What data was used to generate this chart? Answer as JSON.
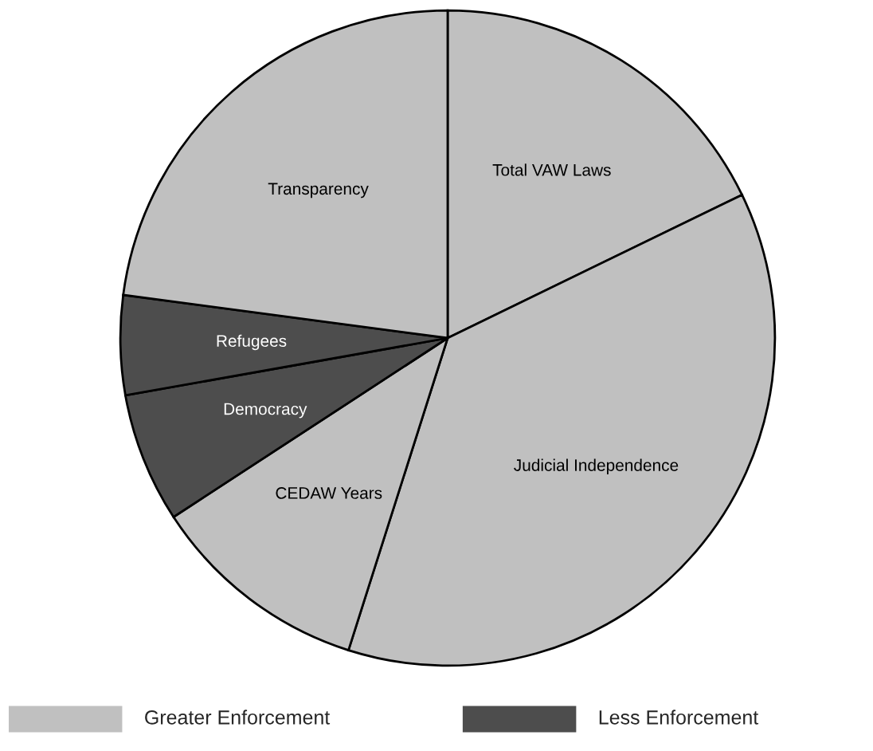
{
  "chart_data": {
    "type": "pie",
    "categories": [
      "Total VAW Laws",
      "Judicial Independence",
      "CEDAW Years",
      "Democracy",
      "Refugees",
      "Transparency"
    ],
    "values": [
      17.8,
      37.1,
      10.9,
      6.4,
      4.9,
      22.9
    ],
    "colors": [
      "#c0c0c0",
      "#c0c0c0",
      "#c0c0c0",
      "#4d4d4d",
      "#4d4d4d",
      "#c0c0c0"
    ],
    "annotations": [
      "Greater Enforcement",
      "Less Enforcement"
    ]
  }
}
